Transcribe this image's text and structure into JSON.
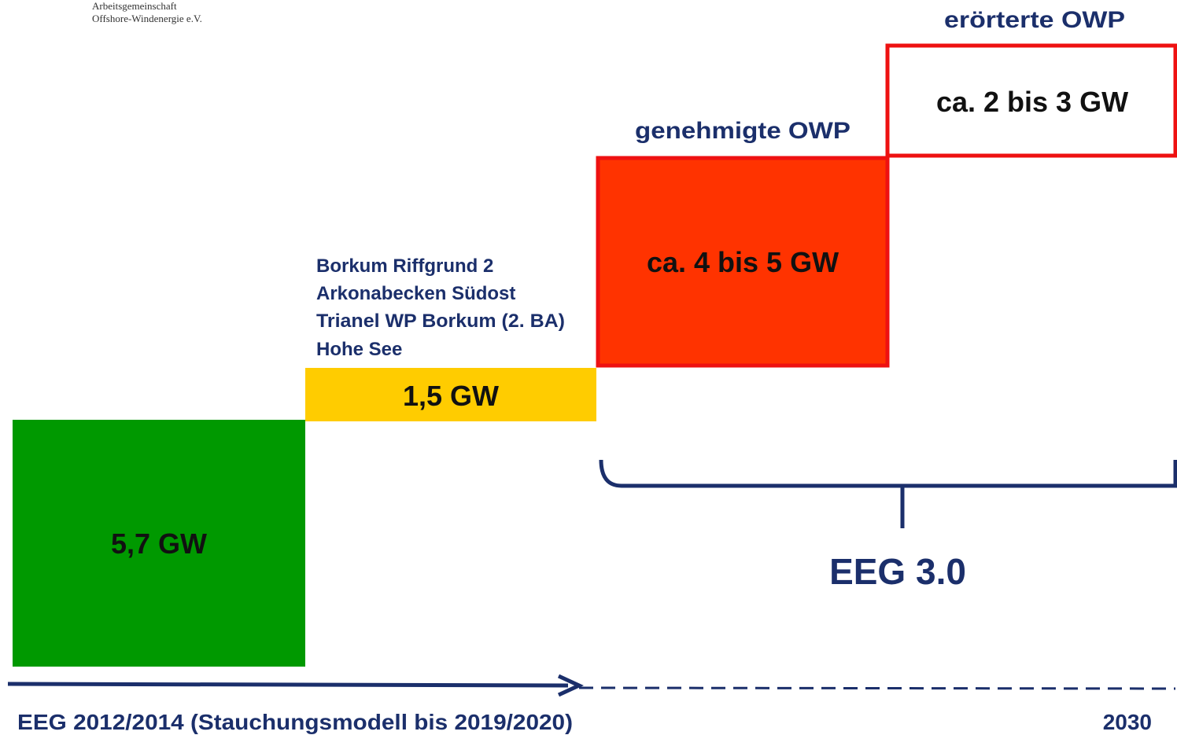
{
  "header": {
    "lines": [
      "Arbeitsgemeinschaft",
      "Offshore-Windenergie e.V."
    ]
  },
  "blocks": [
    {
      "label": "5,7 GW"
    },
    {
      "label": "1,5 GW",
      "projects": [
        "Borkum Riffgrund 2",
        "Arkonabecken Südost",
        "Trianel WP Borkum (2. BA)",
        "Hohe See"
      ]
    },
    {
      "label": "ca. 4 bis 5 GW",
      "caption": "genehmigte OWP"
    },
    {
      "label": "ca. 2 bis 3 GW",
      "caption": "erörterte OWP"
    }
  ],
  "brace": {
    "label": "EEG 3.0"
  },
  "timeline": {
    "start": "EEG 2012/2014 (Stauchungsmodell bis 2019/2020)",
    "end": "2030"
  }
}
